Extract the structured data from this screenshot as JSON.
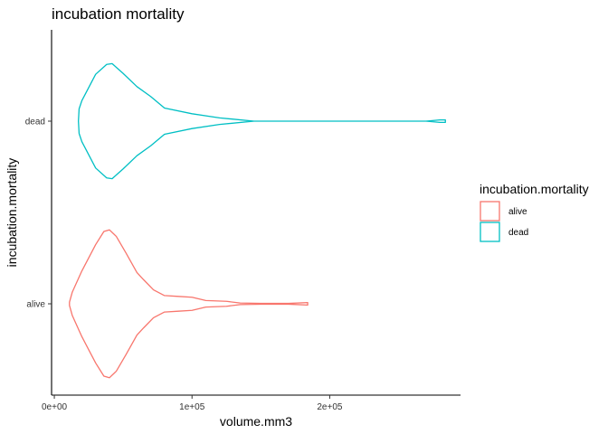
{
  "chart_data": {
    "type": "violin",
    "title": "incubation mortality",
    "xlabel": "volume.mm3",
    "ylabel": "incubation.mortality",
    "xlim": [
      -2000,
      295000
    ],
    "x_ticks": [
      0,
      100000,
      200000
    ],
    "x_tick_labels": [
      "0e+00",
      "1e+05",
      "2e+05"
    ],
    "categories": [
      "alive",
      "dead"
    ],
    "grid": false,
    "legend": {
      "title": "incubation.mortality",
      "position": "right",
      "items": [
        "alive",
        "dead"
      ]
    },
    "series": [
      {
        "name": "alive",
        "color": "#F8766D",
        "profile": [
          [
            11000,
            0.02
          ],
          [
            13000,
            0.14
          ],
          [
            20000,
            0.4
          ],
          [
            30000,
            0.72
          ],
          [
            36000,
            0.88
          ],
          [
            40000,
            0.9
          ],
          [
            45000,
            0.82
          ],
          [
            52000,
            0.62
          ],
          [
            60000,
            0.38
          ],
          [
            65000,
            0.29
          ],
          [
            72000,
            0.17
          ],
          [
            80000,
            0.1
          ],
          [
            90000,
            0.09
          ],
          [
            100000,
            0.08
          ],
          [
            110000,
            0.04
          ],
          [
            125000,
            0.03
          ],
          [
            135000,
            0.01
          ],
          [
            150000,
            0.005
          ],
          [
            170000,
            0.005
          ],
          [
            184000,
            0.015
          ]
        ]
      },
      {
        "name": "dead",
        "color": "#00BFC4",
        "profile": [
          [
            17500,
            0.0
          ],
          [
            18000,
            0.15
          ],
          [
            20000,
            0.25
          ],
          [
            30000,
            0.57
          ],
          [
            38000,
            0.69
          ],
          [
            42000,
            0.7
          ],
          [
            50000,
            0.58
          ],
          [
            60000,
            0.42
          ],
          [
            70000,
            0.3
          ],
          [
            80000,
            0.16
          ],
          [
            100000,
            0.09
          ],
          [
            120000,
            0.04
          ],
          [
            145000,
            0.0
          ],
          [
            200000,
            0.0
          ],
          [
            270000,
            0.0
          ],
          [
            280000,
            0.015
          ],
          [
            284000,
            0.015
          ]
        ]
      }
    ]
  }
}
